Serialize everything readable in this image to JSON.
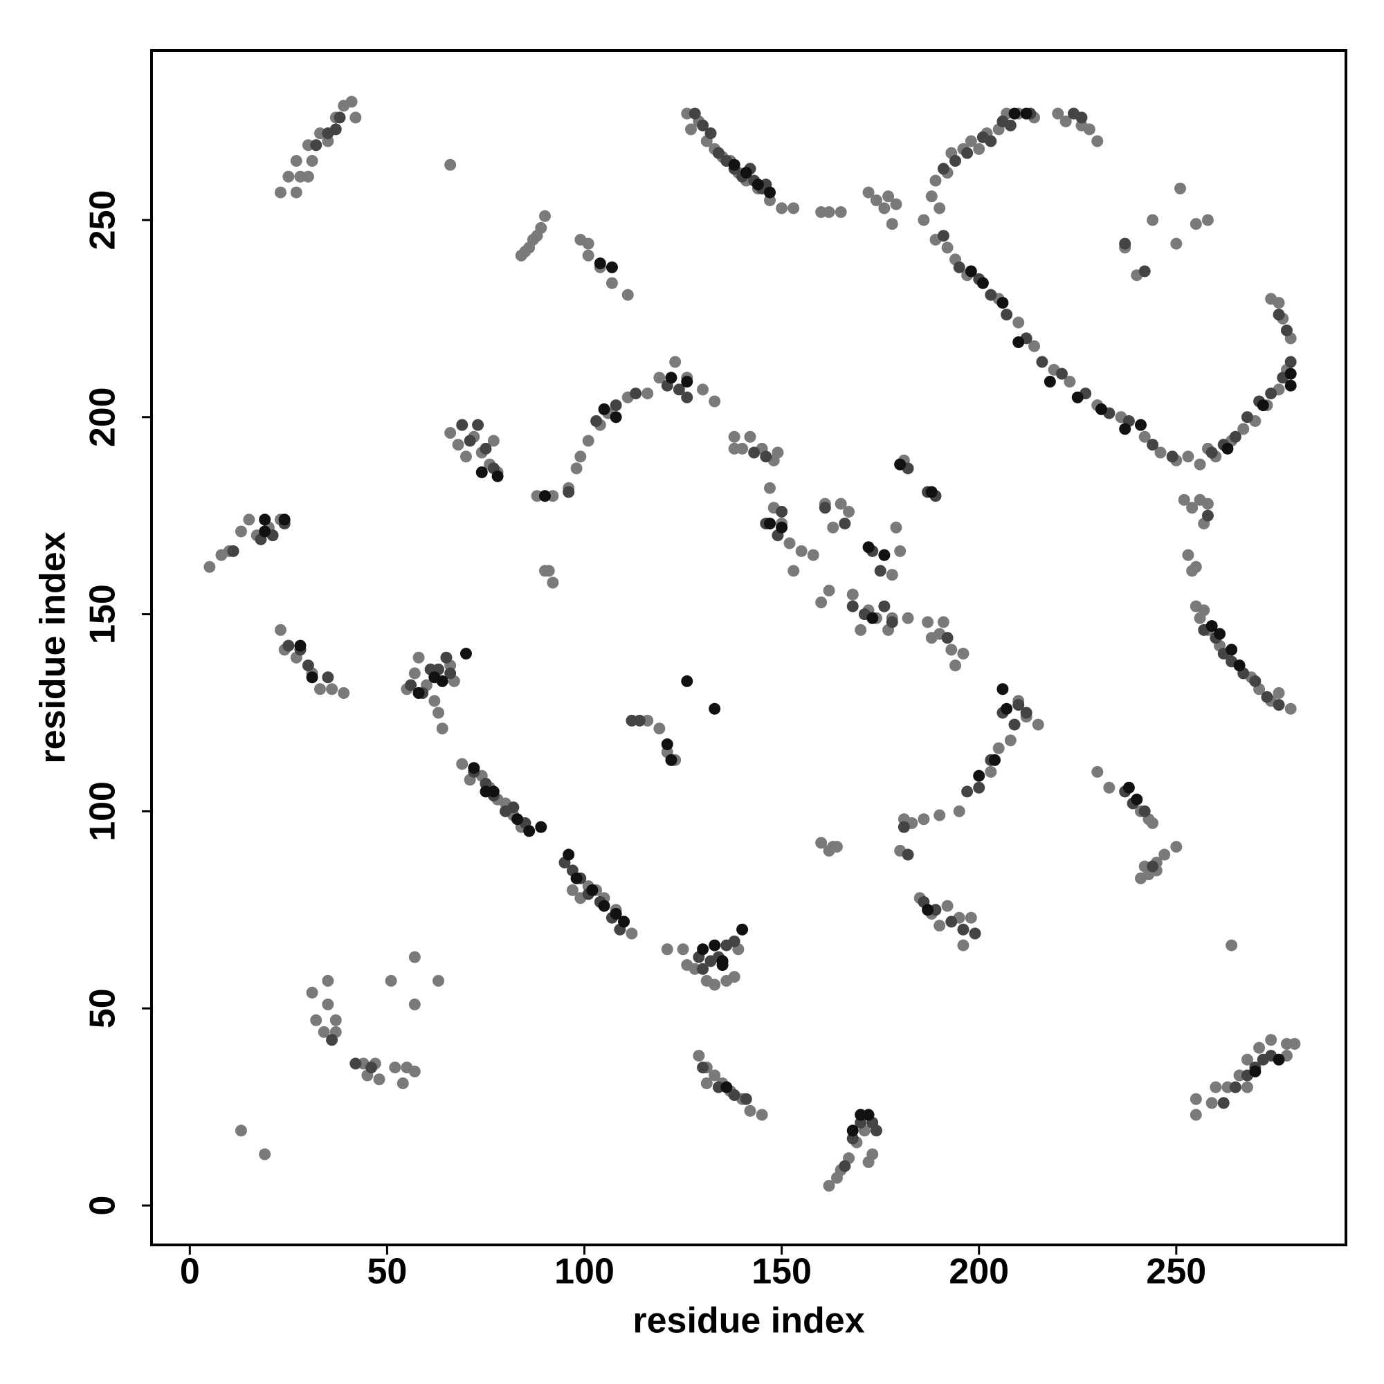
{
  "chart_data": {
    "type": "scatter",
    "xlabel": "residue index",
    "ylabel": "residue index",
    "xlim": [
      -9.7,
      293
    ],
    "ylim": [
      -10,
      293
    ],
    "xticks": [
      0,
      50,
      100,
      150,
      200,
      250
    ],
    "yticks": [
      0,
      50,
      100,
      150,
      200,
      250
    ],
    "grid": false,
    "series": [
      {
        "color": "#7a7a7a",
        "x": [
          23,
          25,
          27,
          28,
          30,
          31,
          33,
          35,
          37,
          39,
          41,
          42,
          27,
          30,
          66,
          84,
          86,
          87,
          89,
          90,
          88,
          85,
          99,
          101,
          101,
          104,
          107,
          111,
          126,
          127,
          129,
          131,
          133,
          135,
          137,
          139,
          141,
          144,
          147,
          150,
          153,
          160,
          162,
          165,
          172,
          174,
          176,
          178,
          179,
          177,
          186,
          188,
          189,
          190,
          192,
          193,
          196,
          198,
          200,
          202,
          205,
          207,
          210,
          214,
          220,
          222,
          226,
          228,
          230,
          189,
          192,
          194,
          197,
          205,
          210,
          214,
          219,
          223,
          230,
          236,
          242,
          246,
          250,
          253,
          256,
          258,
          260,
          264,
          267,
          270,
          273,
          276,
          278,
          279,
          277,
          274,
          276,
          237,
          240,
          244,
          250,
          251,
          255,
          258,
          258,
          88,
          92,
          96,
          98,
          99,
          101,
          104,
          106,
          111,
          116,
          119,
          123,
          126,
          130,
          133,
          66,
          68,
          70,
          72,
          74,
          76,
          77,
          78,
          138,
          140,
          142,
          145,
          148,
          149,
          138,
          147,
          148,
          150,
          152,
          153,
          155,
          158,
          160,
          162,
          161,
          163,
          165,
          167,
          168,
          170,
          172,
          174,
          178,
          180,
          182,
          179,
          178,
          180,
          181,
          177,
          187,
          188,
          191,
          193,
          196,
          194,
          190,
          186,
          190,
          195,
          203,
          205,
          208,
          210,
          212,
          215,
          180,
          181,
          183,
          160,
          163,
          164,
          162,
          185,
          188,
          190,
          192,
          195,
          196,
          198,
          230,
          233,
          241,
          243,
          244,
          241,
          242,
          245,
          247,
          250,
          243,
          245,
          255,
          256,
          258,
          261,
          263,
          266,
          269,
          271,
          274,
          276,
          279,
          257,
          252,
          254,
          256,
          257,
          253,
          254,
          255,
          255,
          255,
          259,
          260,
          263,
          266,
          268,
          271,
          274,
          278,
          280,
          278,
          268,
          264,
          129,
          131,
          133,
          135,
          137,
          140,
          142,
          145,
          131,
          162,
          164,
          165,
          167,
          169,
          171,
          173,
          172,
          121,
          125,
          126,
          131,
          133,
          136,
          138,
          139,
          128,
          69,
          71,
          74,
          76,
          78,
          80,
          82,
          84,
          97,
          99,
          101,
          103,
          105,
          108,
          110,
          112,
          116,
          119,
          121,
          123,
          55,
          57,
          58,
          60,
          62,
          63,
          64,
          66,
          67,
          23,
          24,
          27,
          31,
          33,
          36,
          39,
          5,
          8,
          10,
          13,
          15,
          17,
          20,
          23,
          13,
          19,
          31,
          32,
          34,
          35,
          35,
          37,
          37,
          44,
          45,
          47,
          48,
          51,
          52,
          54,
          55,
          57,
          57,
          57,
          63,
          90,
          91,
          92
        ],
        "y": [
          257,
          261,
          265,
          261,
          269,
          265,
          272,
          270,
          276,
          279,
          280,
          276,
          257,
          261,
          264,
          241,
          243,
          245,
          248,
          251,
          246,
          242,
          245,
          244,
          241,
          238,
          234,
          231,
          277,
          273,
          275,
          270,
          268,
          266,
          265,
          262,
          260,
          258,
          255,
          253,
          253,
          252,
          252,
          252,
          257,
          255,
          253,
          249,
          254,
          256,
          250,
          256,
          260,
          253,
          262,
          267,
          268,
          270,
          268,
          272,
          273,
          277,
          277,
          276,
          277,
          275,
          274,
          273,
          270,
          245,
          243,
          240,
          236,
          230,
          224,
          218,
          212,
          209,
          203,
          200,
          195,
          191,
          189,
          190,
          188,
          192,
          190,
          194,
          197,
          199,
          203,
          207,
          212,
          220,
          225,
          230,
          229,
          243,
          236,
          250,
          244,
          258,
          249,
          250,
          178,
          180,
          180,
          182,
          187,
          190,
          194,
          198,
          201,
          205,
          206,
          210,
          214,
          210,
          207,
          204,
          196,
          193,
          190,
          195,
          191,
          188,
          194,
          186,
          195,
          192,
          195,
          192,
          189,
          191,
          192,
          182,
          177,
          173,
          168,
          161,
          166,
          165,
          153,
          156,
          178,
          172,
          178,
          176,
          155,
          146,
          151,
          149,
          160,
          166,
          149,
          172,
          149,
          188,
          189,
          146,
          148,
          144,
          148,
          141,
          140,
          137,
          145,
          98,
          99,
          100,
          110,
          116,
          118,
          128,
          124,
          122,
          90,
          98,
          97,
          92,
          91,
          91,
          90,
          78,
          74,
          71,
          76,
          73,
          66,
          73,
          110,
          106,
          100,
          98,
          97,
          83,
          86,
          87,
          89,
          91,
          84,
          85,
          152,
          149,
          146,
          142,
          140,
          137,
          134,
          131,
          128,
          130,
          126,
          151,
          179,
          177,
          179,
          173,
          165,
          161,
          162,
          23,
          27,
          26,
          30,
          30,
          33,
          37,
          40,
          42,
          41,
          41,
          38,
          30,
          66,
          38,
          35,
          33,
          31,
          29,
          27,
          24,
          23,
          31,
          5,
          7,
          9,
          12,
          16,
          19,
          13,
          11,
          65,
          65,
          61,
          57,
          56,
          57,
          58,
          65,
          60,
          112,
          108,
          109,
          106,
          103,
          102,
          99,
          96,
          80,
          78,
          81,
          80,
          78,
          75,
          72,
          69,
          123,
          121,
          115,
          113,
          131,
          135,
          139,
          132,
          128,
          125,
          121,
          137,
          133,
          146,
          141,
          139,
          135,
          131,
          131,
          130,
          162,
          165,
          166,
          171,
          174,
          170,
          172,
          174,
          19,
          13,
          54,
          47,
          44,
          57,
          51,
          47,
          44,
          36,
          33,
          36,
          32,
          57,
          35,
          31,
          35,
          63,
          51,
          34,
          57,
          161,
          161,
          158
        ]
      },
      {
        "color": "#444444",
        "x": [
          35,
          37,
          38,
          32,
          128,
          130,
          132,
          134,
          136,
          138,
          140,
          142,
          143,
          145,
          146,
          191,
          194,
          197,
          201,
          203,
          206,
          208,
          213,
          224,
          226,
          191,
          195,
          200,
          203,
          207,
          212,
          216,
          221,
          227,
          233,
          238,
          244,
          249,
          259,
          262,
          265,
          268,
          271,
          274,
          277,
          279,
          278,
          276,
          237,
          242,
          96,
          103,
          108,
          113,
          121,
          124,
          126,
          69,
          71,
          73,
          75,
          77,
          143,
          146,
          146,
          149,
          150,
          161,
          166,
          168,
          171,
          173,
          175,
          176,
          178,
          182,
          187,
          189,
          192,
          197,
          200,
          203,
          206,
          209,
          210,
          212,
          181,
          182,
          186,
          189,
          193,
          196,
          199,
          237,
          239,
          242,
          244,
          257,
          260,
          262,
          264,
          267,
          270,
          273,
          276,
          258,
          262,
          265,
          268,
          270,
          274,
          272,
          130,
          134,
          138,
          141,
          166,
          168,
          170,
          173,
          174,
          130,
          132,
          134,
          136,
          138,
          129,
          72,
          75,
          77,
          80,
          82,
          85,
          95,
          97,
          99,
          101,
          104,
          107,
          109,
          112,
          114,
          56,
          59,
          61,
          63,
          65,
          66,
          25,
          28,
          30,
          35,
          11,
          18,
          21,
          24,
          36,
          42,
          46
        ],
        "y": [
          272,
          273,
          276,
          269,
          277,
          274,
          272,
          267,
          265,
          263,
          261,
          263,
          260,
          258,
          259,
          263,
          265,
          267,
          271,
          270,
          275,
          274,
          277,
          277,
          276,
          246,
          238,
          235,
          231,
          226,
          220,
          214,
          211,
          206,
          201,
          199,
          193,
          190,
          191,
          193,
          195,
          200,
          204,
          206,
          210,
          214,
          222,
          226,
          244,
          237,
          181,
          199,
          203,
          206,
          208,
          207,
          205,
          198,
          194,
          198,
          192,
          187,
          191,
          190,
          173,
          170,
          176,
          177,
          173,
          152,
          150,
          166,
          161,
          152,
          148,
          187,
          181,
          180,
          144,
          105,
          106,
          113,
          125,
          122,
          127,
          125,
          96,
          89,
          77,
          75,
          72,
          70,
          69,
          105,
          102,
          100,
          86,
          146,
          144,
          140,
          138,
          135,
          133,
          129,
          127,
          175,
          26,
          30,
          33,
          35,
          38,
          37,
          35,
          30,
          28,
          27,
          10,
          17,
          21,
          21,
          19,
          60,
          62,
          63,
          66,
          67,
          63,
          110,
          107,
          104,
          100,
          101,
          97,
          87,
          85,
          83,
          79,
          77,
          73,
          70,
          123,
          123,
          132,
          130,
          136,
          136,
          139,
          135,
          142,
          141,
          137,
          134,
          166,
          169,
          170,
          173,
          42,
          36,
          35
        ]
      },
      {
        "color": "#111111",
        "x": [
          138,
          141,
          144,
          147,
          104,
          107,
          209,
          212,
          198,
          201,
          206,
          210,
          218,
          225,
          231,
          237,
          241,
          263,
          272,
          279,
          279,
          90,
          105,
          108,
          122,
          126,
          74,
          78,
          147,
          150,
          173,
          172,
          176,
          180,
          188,
          200,
          204,
          207,
          206,
          187,
          238,
          240,
          259,
          261,
          264,
          266,
          276,
          270,
          136,
          170,
          172,
          168,
          130,
          133,
          135,
          140,
          135,
          72,
          75,
          77,
          83,
          86,
          89,
          96,
          98,
          102,
          105,
          108,
          110,
          121,
          122,
          126,
          133,
          58,
          62,
          64,
          70,
          28,
          31,
          19,
          24,
          19
        ],
        "y": [
          264,
          262,
          259,
          257,
          239,
          238,
          277,
          277,
          237,
          234,
          229,
          219,
          209,
          205,
          202,
          197,
          198,
          192,
          203,
          208,
          211,
          180,
          202,
          200,
          210,
          209,
          186,
          185,
          173,
          172,
          149,
          167,
          165,
          188,
          181,
          109,
          113,
          126,
          131,
          75,
          106,
          103,
          147,
          145,
          141,
          137,
          37,
          34,
          30,
          23,
          23,
          19,
          65,
          66,
          62,
          70,
          61,
          111,
          105,
          105,
          98,
          95,
          96,
          89,
          83,
          80,
          76,
          74,
          72,
          117,
          113,
          133,
          126,
          130,
          134,
          133,
          140,
          142,
          134,
          171,
          174,
          174
        ]
      }
    ]
  }
}
